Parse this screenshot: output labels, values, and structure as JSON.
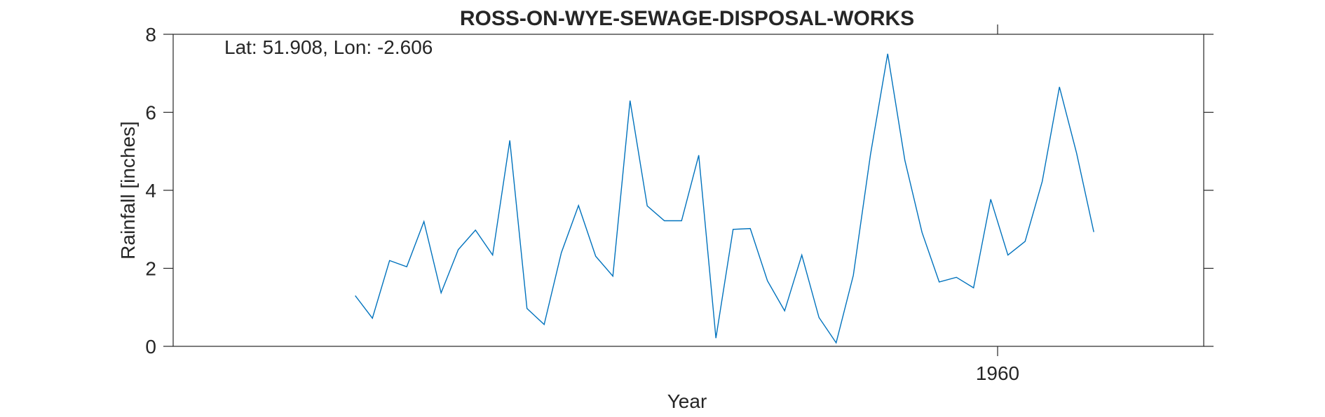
{
  "chart_data": {
    "type": "line",
    "title": "ROSS-ON-WYE-SEWAGE-DISPOSAL-WORKS",
    "xlabel": "Year",
    "ylabel": "Rainfall [inches]",
    "annotation": "Lat: 51.908, Lon: -2.606",
    "xlim": [
      1912,
      1972
    ],
    "ylim": [
      0,
      8
    ],
    "x_ticks": [
      1960
    ],
    "x_tick_labels": [
      "1960"
    ],
    "y_ticks": [
      0,
      2,
      4,
      6,
      8
    ],
    "y_tick_labels": [
      "0",
      "2",
      "4",
      "6",
      "8"
    ],
    "grid": false,
    "line_color": "#0072BD",
    "axis_color": "#262626",
    "series": [
      {
        "x": [
          1922.6,
          1923.6,
          1924.6,
          1925.6,
          1926.6,
          1927.6,
          1928.6,
          1929.6,
          1930.6,
          1931.6,
          1932.6,
          1933.6,
          1934.6,
          1935.6,
          1936.6,
          1937.6,
          1938.6,
          1939.6,
          1940.6,
          1941.6,
          1942.6,
          1943.6,
          1944.6,
          1945.6,
          1946.6,
          1947.6,
          1948.6,
          1949.6,
          1950.6,
          1951.6,
          1952.6,
          1953.6,
          1954.6,
          1955.6,
          1956.6,
          1957.6,
          1958.6,
          1959.6,
          1960.6,
          1961.6,
          1962.6,
          1963.6,
          1964.6,
          1965.6
        ],
        "y": [
          1.3,
          0.72,
          2.2,
          2.04,
          3.2,
          1.37,
          2.48,
          2.98,
          2.34,
          5.28,
          0.97,
          0.56,
          2.4,
          3.61,
          2.31,
          1.8,
          6.3,
          3.6,
          3.22,
          3.22,
          4.9,
          0.21,
          3.0,
          3.02,
          1.68,
          0.91,
          2.34,
          0.74,
          0.09,
          1.82,
          4.92,
          7.5,
          4.77,
          2.92,
          1.65,
          1.77,
          1.5,
          3.77,
          2.34,
          2.69,
          4.23,
          6.65,
          4.95,
          2.93
        ]
      }
    ]
  }
}
